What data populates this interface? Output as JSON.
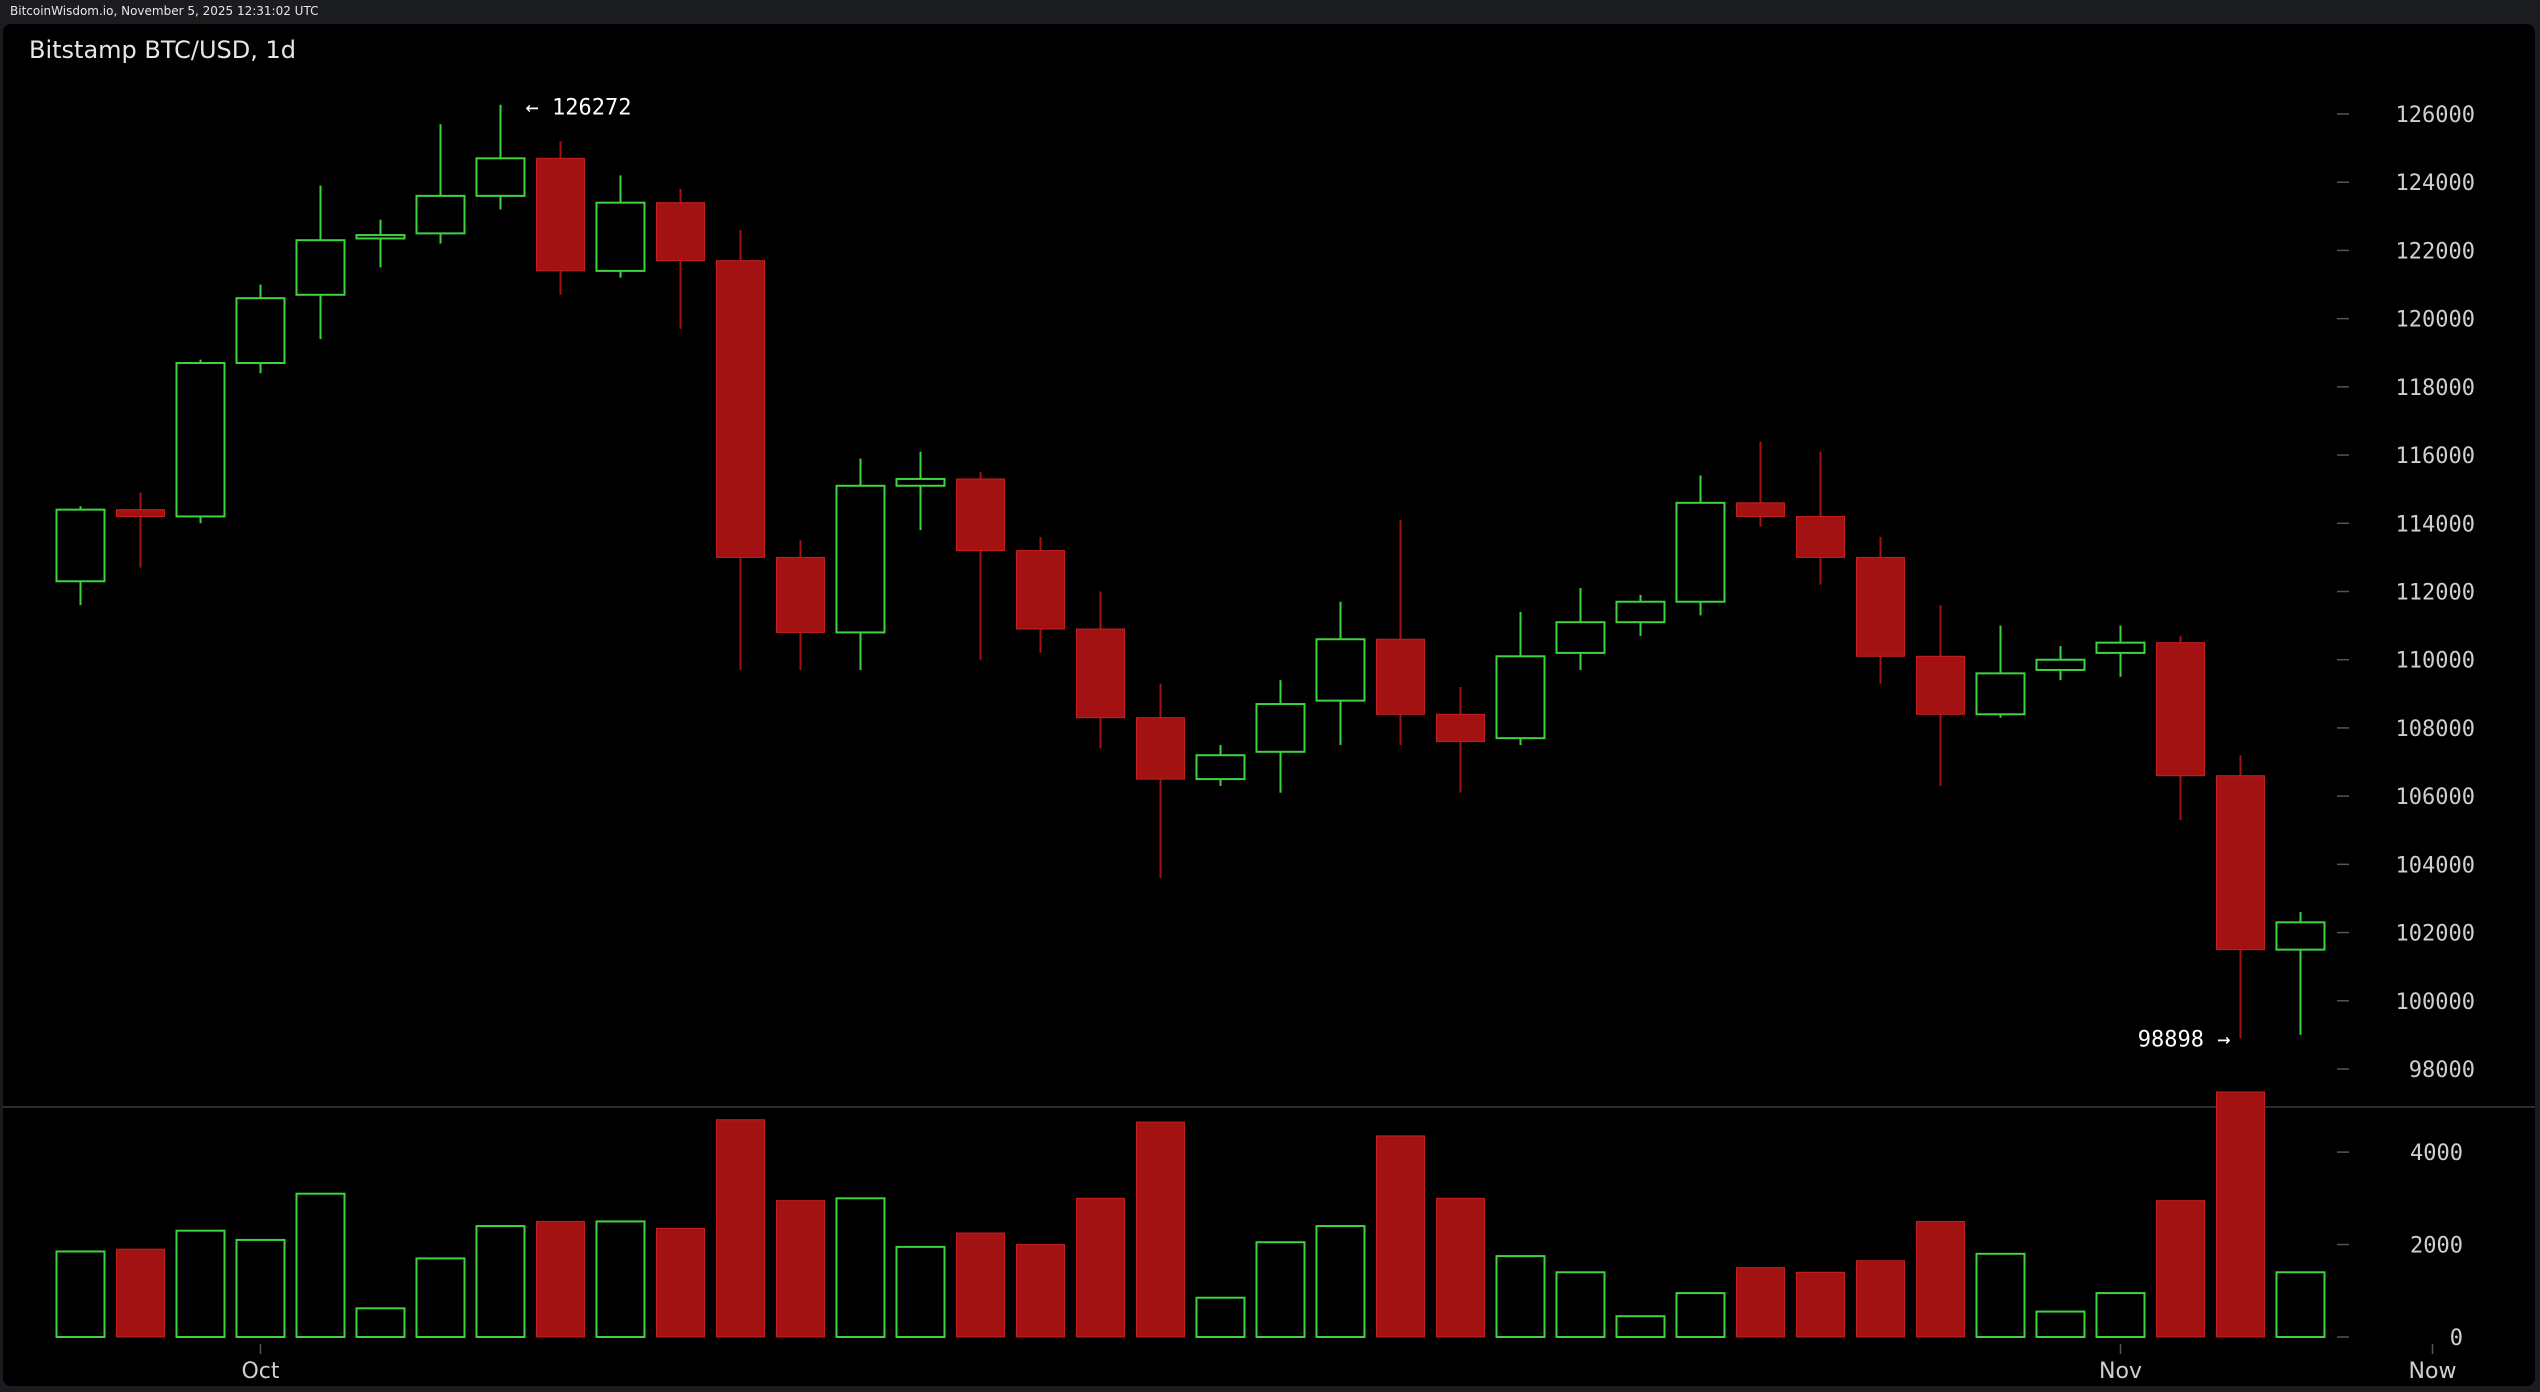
{
  "header": {
    "source_line": "BitcoinWisdom.io, November 5, 2025 12:31:02 UTC"
  },
  "chart_title": "Bitstamp BTC/USD, 1d",
  "chart_data": {
    "type": "candlestick",
    "title": "Bitstamp BTC/USD, 1d",
    "price_ylim": [
      97000,
      127500
    ],
    "price_ticks": [
      98000,
      100000,
      102000,
      104000,
      106000,
      108000,
      110000,
      112000,
      114000,
      116000,
      118000,
      120000,
      122000,
      124000,
      126000
    ],
    "volume_ylim": [
      0,
      5300
    ],
    "volume_ticks": [
      0,
      2000,
      4000
    ],
    "x_labels": [
      {
        "label": "Oct",
        "candle_index": 3
      },
      {
        "label": "Nov",
        "candle_index": 34
      },
      {
        "label": "Now",
        "candle_index": 39.2
      }
    ],
    "annotations": {
      "high": {
        "text": "← 126272",
        "value": 126272,
        "candle_index": 7
      },
      "low": {
        "text": "98898 →",
        "value": 98898,
        "candle_index": 36
      }
    },
    "up_color": "#3fd33f",
    "down_color": "#a31212",
    "candles": [
      {
        "o": 112300,
        "h": 114500,
        "l": 111600,
        "c": 114400,
        "v": 1850
      },
      {
        "o": 114400,
        "h": 114900,
        "l": 112700,
        "c": 114200,
        "v": 1900
      },
      {
        "o": 114200,
        "h": 118800,
        "l": 114000,
        "c": 118700,
        "v": 2300
      },
      {
        "o": 118700,
        "h": 121000,
        "l": 118400,
        "c": 120600,
        "v": 2100
      },
      {
        "o": 120700,
        "h": 123900,
        "l": 119400,
        "c": 122300,
        "v": 3100
      },
      {
        "o": 122350,
        "h": 122900,
        "l": 121500,
        "c": 122450,
        "v": 620
      },
      {
        "o": 122500,
        "h": 125700,
        "l": 122200,
        "c": 123600,
        "v": 1700
      },
      {
        "o": 123600,
        "h": 126272,
        "l": 123200,
        "c": 124700,
        "v": 2400
      },
      {
        "o": 124700,
        "h": 125200,
        "l": 120700,
        "c": 121400,
        "v": 2500
      },
      {
        "o": 121400,
        "h": 124200,
        "l": 121200,
        "c": 123400,
        "v": 2500
      },
      {
        "o": 123400,
        "h": 123800,
        "l": 119700,
        "c": 121700,
        "v": 2350
      },
      {
        "o": 121700,
        "h": 122600,
        "l": 109700,
        "c": 113000,
        "v": 4700
      },
      {
        "o": 113000,
        "h": 113500,
        "l": 109700,
        "c": 110800,
        "v": 2950
      },
      {
        "o": 110800,
        "h": 115900,
        "l": 109700,
        "c": 115100,
        "v": 3000
      },
      {
        "o": 115100,
        "h": 116100,
        "l": 113800,
        "c": 115300,
        "v": 1950
      },
      {
        "o": 115300,
        "h": 115500,
        "l": 110000,
        "c": 113200,
        "v": 2250
      },
      {
        "o": 113200,
        "h": 113600,
        "l": 110200,
        "c": 110900,
        "v": 2000
      },
      {
        "o": 110900,
        "h": 112000,
        "l": 107400,
        "c": 108300,
        "v": 3000
      },
      {
        "o": 108300,
        "h": 109300,
        "l": 103600,
        "c": 106500,
        "v": 4650
      },
      {
        "o": 106500,
        "h": 107500,
        "l": 106300,
        "c": 107200,
        "v": 850
      },
      {
        "o": 107300,
        "h": 109400,
        "l": 106100,
        "c": 108700,
        "v": 2050
      },
      {
        "o": 108800,
        "h": 111700,
        "l": 107500,
        "c": 110600,
        "v": 2400
      },
      {
        "o": 110600,
        "h": 114100,
        "l": 107500,
        "c": 108400,
        "v": 4350
      },
      {
        "o": 108400,
        "h": 109200,
        "l": 106100,
        "c": 107600,
        "v": 3000
      },
      {
        "o": 107700,
        "h": 111400,
        "l": 107500,
        "c": 110100,
        "v": 1750
      },
      {
        "o": 110200,
        "h": 112100,
        "l": 109700,
        "c": 111100,
        "v": 1400
      },
      {
        "o": 111100,
        "h": 111900,
        "l": 110700,
        "c": 111700,
        "v": 450
      },
      {
        "o": 111700,
        "h": 115400,
        "l": 111300,
        "c": 114600,
        "v": 950
      },
      {
        "o": 114600,
        "h": 116400,
        "l": 113900,
        "c": 114200,
        "v": 1500
      },
      {
        "o": 114200,
        "h": 116100,
        "l": 112200,
        "c": 113000,
        "v": 1400
      },
      {
        "o": 113000,
        "h": 113600,
        "l": 109300,
        "c": 110100,
        "v": 1650
      },
      {
        "o": 110100,
        "h": 111600,
        "l": 106300,
        "c": 108400,
        "v": 2500
      },
      {
        "o": 108400,
        "h": 111000,
        "l": 108300,
        "c": 109600,
        "v": 1800
      },
      {
        "o": 109700,
        "h": 110400,
        "l": 109400,
        "c": 110000,
        "v": 550
      },
      {
        "o": 110200,
        "h": 111000,
        "l": 109500,
        "c": 110500,
        "v": 950
      },
      {
        "o": 110500,
        "h": 110700,
        "l": 105300,
        "c": 106600,
        "v": 2950
      },
      {
        "o": 106600,
        "h": 107200,
        "l": 98898,
        "c": 101500,
        "v": 5300
      },
      {
        "o": 101500,
        "h": 102600,
        "l": 99000,
        "c": 102300,
        "v": 1400
      }
    ]
  }
}
